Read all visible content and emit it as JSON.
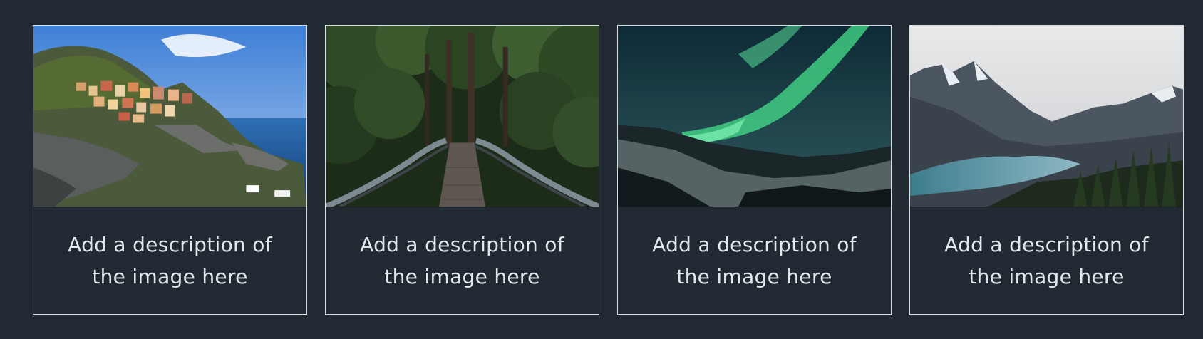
{
  "gallery": {
    "cards": [
      {
        "image": "coastal-village-photo",
        "caption": "Add a description of the image here"
      },
      {
        "image": "forest-bridge-photo",
        "caption": "Add a description of the image here"
      },
      {
        "image": "aurora-photo",
        "caption": "Add a description of the image here"
      },
      {
        "image": "mountain-lake-photo",
        "caption": "Add a description of the image here"
      }
    ]
  },
  "colors": {
    "background": "#212a33",
    "card_border": "#d9dde2",
    "caption_text": "#e3e7eb"
  }
}
